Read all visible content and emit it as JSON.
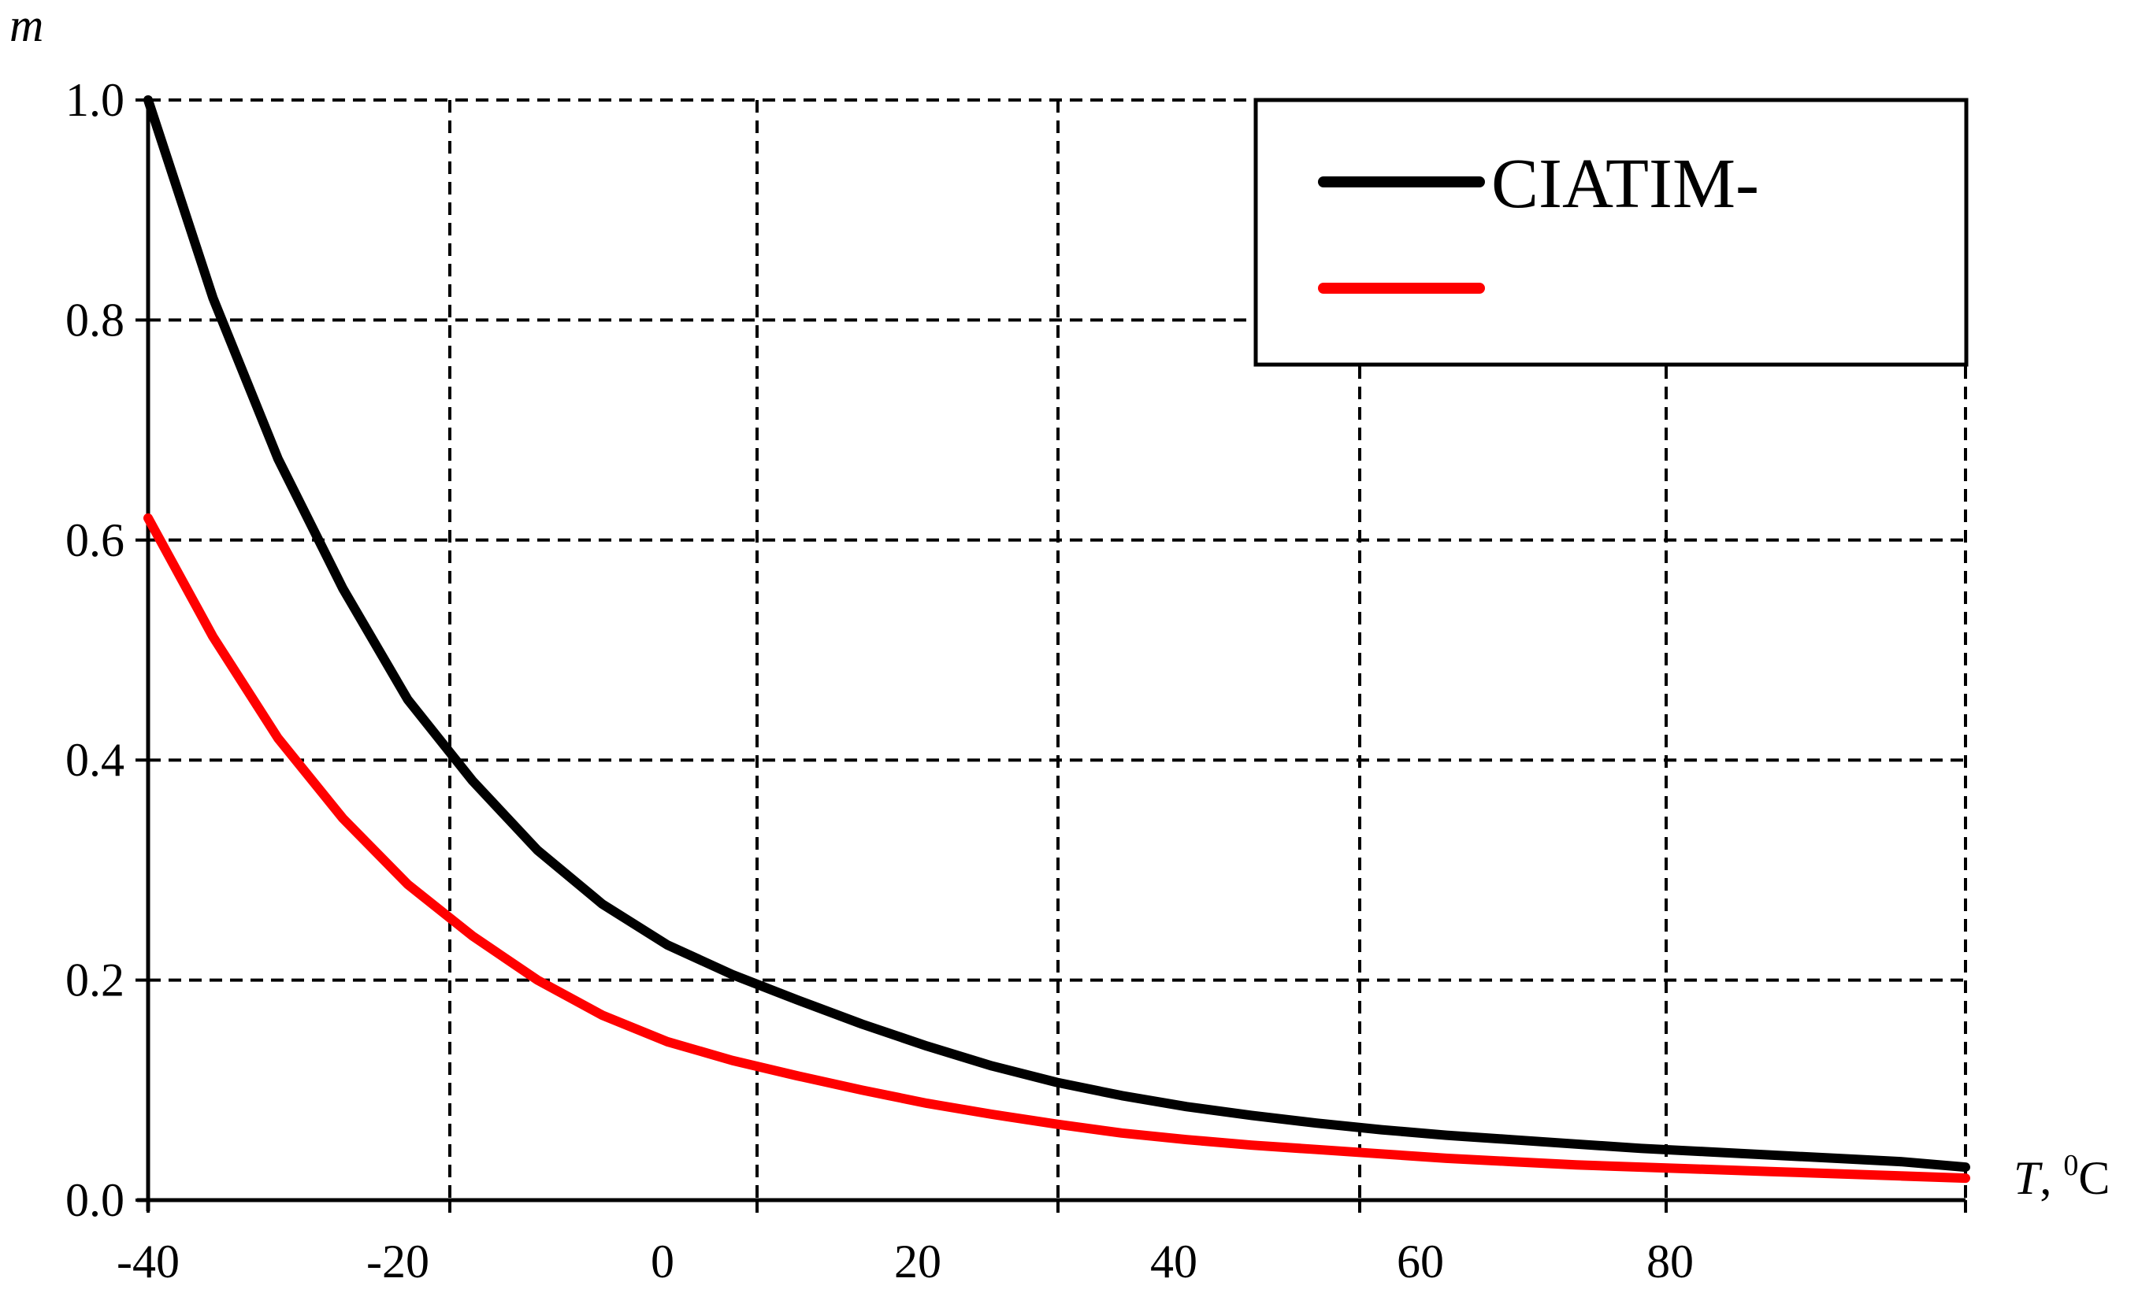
{
  "chart_data": {
    "type": "line",
    "ylabel": "m",
    "xlabel": "T",
    "xlabel_unit_sup": "0",
    "xlabel_unit": "C",
    "xlim": [
      -40,
      100
    ],
    "ylim": [
      0,
      1.0
    ],
    "x_ticks": [
      -40,
      -20,
      0,
      20,
      40,
      60,
      80
    ],
    "x_tick_labels": [
      "-40",
      "-20",
      "0",
      "20",
      "40",
      "60",
      "80"
    ],
    "y_ticks": [
      0,
      0.2,
      0.4,
      0.6,
      0.8,
      1.0
    ],
    "y_tick_labels": [
      "0.0",
      "0.2",
      "0.4",
      "0.6",
      "0.8",
      "1.0"
    ],
    "grid": true,
    "grid_style": "dashed",
    "legend_position": "top-right",
    "series": [
      {
        "name": "CIATIM-",
        "color": "#000000",
        "x": [
          -40,
          -35,
          -30,
          -25,
          -20,
          -15,
          -10,
          -5,
          0,
          5,
          10,
          15,
          20,
          25,
          30,
          35,
          40,
          45,
          50,
          55,
          60,
          65,
          70,
          75,
          80,
          85,
          90,
          95,
          100
        ],
        "y": [
          1.0,
          0.82,
          0.674,
          0.556,
          0.455,
          0.381,
          0.318,
          0.269,
          0.232,
          0.205,
          0.182,
          0.16,
          0.14,
          0.122,
          0.107,
          0.095,
          0.085,
          0.077,
          0.07,
          0.064,
          0.059,
          0.055,
          0.051,
          0.047,
          0.044,
          0.041,
          0.038,
          0.035,
          0.03
        ]
      },
      {
        "name": "",
        "color": "#ff0000",
        "x": [
          -40,
          -35,
          -30,
          -25,
          -20,
          -15,
          -10,
          -5,
          0,
          5,
          10,
          15,
          20,
          25,
          30,
          35,
          40,
          45,
          50,
          55,
          60,
          65,
          70,
          75,
          80,
          85,
          90,
          95,
          100
        ],
        "y": [
          0.62,
          0.512,
          0.42,
          0.347,
          0.287,
          0.24,
          0.2,
          0.168,
          0.144,
          0.127,
          0.113,
          0.1,
          0.088,
          0.078,
          0.069,
          0.061,
          0.055,
          0.05,
          0.046,
          0.042,
          0.038,
          0.035,
          0.032,
          0.03,
          0.028,
          0.026,
          0.024,
          0.022,
          0.02
        ]
      }
    ]
  }
}
